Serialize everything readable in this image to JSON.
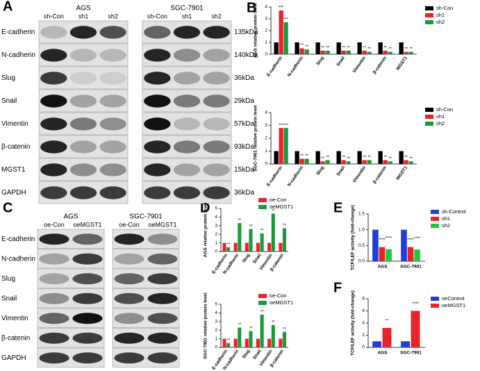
{
  "panels": [
    "A",
    "B",
    "C",
    "D",
    "E",
    "F"
  ],
  "blot_A": {
    "groups": [
      {
        "name": "AGS",
        "lanes": [
          "sh-Con",
          "sh1",
          "sh2"
        ]
      },
      {
        "name": "SGC-7901",
        "lanes": [
          "sh-Con",
          "sh1",
          "sh2"
        ]
      }
    ],
    "rows": [
      "E-cadherin",
      "N-cadherin",
      "Slug",
      "Snail",
      "Vimentin",
      "β-catenin",
      "MGST1",
      "GAPDH"
    ],
    "sizes": [
      "135kDa",
      "140kDa",
      "36kDa",
      "29kDa",
      "57kDa",
      "93kDa",
      "15kDa",
      "36kDa"
    ]
  },
  "blot_C": {
    "groups": [
      {
        "name": "AGS",
        "lanes": [
          "oe-Con",
          "oeMGST1"
        ]
      },
      {
        "name": "SGC-7901",
        "lanes": [
          "oe-Con",
          "oeMGST1"
        ]
      }
    ],
    "rows": [
      "E-cadherin",
      "N-cadherin",
      "Slug",
      "Snail",
      "Vimentin",
      "β-catenin",
      "GAPDH"
    ]
  },
  "chart_data": [
    {
      "type": "bar",
      "ylabel": "AGS relative protein level",
      "categories": [
        "E-cadherin",
        "N-cadherin",
        "Slug",
        "Snail",
        "Vimentin",
        "β-catenin",
        "MGST1"
      ],
      "series": [
        {
          "name": "sh-Con",
          "color": "#000000",
          "values": [
            1,
            1,
            1,
            1,
            1,
            1,
            1
          ]
        },
        {
          "name": "sh1",
          "color": "#e8232a",
          "values": [
            3.7,
            0.5,
            0.3,
            0.3,
            0.3,
            0.3,
            0.2
          ],
          "annotations": [
            "***",
            "**",
            "**",
            "**",
            "**",
            "**",
            "**"
          ]
        },
        {
          "name": "sh2",
          "color": "#1a9a3a",
          "values": [
            2.7,
            0.4,
            0.3,
            0.3,
            0.2,
            0.2,
            0.2
          ],
          "annotations": [
            "***",
            "**",
            "**",
            "**",
            "**",
            "**",
            "**"
          ]
        }
      ],
      "ylim": [
        0,
        4
      ],
      "yticks": [
        0,
        1,
        2,
        3,
        4
      ]
    },
    {
      "type": "bar",
      "ylabel": "SGC-7901 relative protein level",
      "categories": [
        "E-cadherin",
        "N-cadherin",
        "Slug",
        "Snail",
        "Vimentin",
        "β-catenin",
        "MGST1"
      ],
      "series": [
        {
          "name": "sh-Con",
          "color": "#000000",
          "values": [
            1,
            1,
            1,
            1,
            1,
            1,
            1
          ]
        },
        {
          "name": "sh1",
          "color": "#e8232a",
          "values": [
            2.8,
            0.4,
            0.2,
            0.3,
            0.3,
            0.3,
            0.3
          ],
          "annotations": [
            "***",
            "**",
            "**",
            "**",
            "**",
            "**",
            "**"
          ]
        },
        {
          "name": "sh2",
          "color": "#1a9a3a",
          "values": [
            2.8,
            0.4,
            0.3,
            0.2,
            0.3,
            0.2,
            0.2
          ],
          "annotations": [
            "***",
            "**",
            "**",
            "**",
            "**",
            "**",
            "**"
          ]
        }
      ],
      "ylim": [
        0,
        4
      ],
      "yticks": [
        0,
        1,
        2,
        3,
        4
      ]
    },
    {
      "type": "bar",
      "ylabel": "AGS relative protein level",
      "categories": [
        "E-cadherin",
        "N-cadherin",
        "Slug",
        "Snail",
        "Vimentin",
        "β-catenin"
      ],
      "series": [
        {
          "name": "oe-Con",
          "color": "#e8232a",
          "values": [
            1,
            1,
            1,
            1,
            1,
            1
          ]
        },
        {
          "name": "oeMGST1",
          "color": "#1a9a3a",
          "values": [
            0.5,
            3.3,
            2.6,
            2.1,
            4.4,
            2.7
          ],
          "annotations": [
            "**",
            "**",
            "**",
            "**",
            "**",
            "**"
          ]
        }
      ],
      "ylim": [
        0,
        5
      ],
      "yticks": [
        0,
        1,
        2,
        3,
        4,
        5
      ]
    },
    {
      "type": "bar",
      "ylabel": "SGC-7901 relative protein level",
      "categories": [
        "E-cadherin",
        "N-cadherin",
        "Slug",
        "Snail",
        "Vimentin",
        "β-catenin"
      ],
      "series": [
        {
          "name": "oe-Con",
          "color": "#e8232a",
          "values": [
            1,
            1,
            1,
            1,
            1,
            1
          ]
        },
        {
          "name": "oeMGST1",
          "color": "#1a9a3a",
          "values": [
            0.5,
            2.3,
            1.9,
            3.8,
            2.6,
            1.8
          ],
          "annotations": [
            "**",
            "**",
            "**",
            "**",
            "**",
            "**"
          ]
        }
      ],
      "ylim": [
        0,
        5
      ],
      "yticks": [
        0,
        1,
        2,
        3,
        4,
        5
      ]
    },
    {
      "type": "bar",
      "ylabel": "TCF/LEF activity (fold-change)",
      "categories": [
        "AGS",
        "SGC-7901"
      ],
      "series": [
        {
          "name": "sh-Control",
          "color": "#1f3fd8",
          "values": [
            1,
            1
          ]
        },
        {
          "name": "sh1",
          "color": "#e8232a",
          "values": [
            0.45,
            0.45
          ],
          "annotations": [
            "****",
            "****"
          ]
        },
        {
          "name": "sh2",
          "color": "#22c83a",
          "values": [
            0.38,
            0.37
          ],
          "annotations": [
            "****",
            "****"
          ]
        }
      ],
      "ylim": [
        0,
        1.5
      ],
      "yticks": [
        {
          "value": 0,
          "label": "0.0"
        },
        {
          "value": 0.5,
          "label": "0.5"
        },
        {
          "value": 1,
          "label": "1.0"
        },
        {
          "value": 1.5,
          "label": "1.5"
        }
      ]
    },
    {
      "type": "bar",
      "ylabel": "TCF/LEF activity (fold-change)",
      "categories": [
        "AGS",
        "SGC-7901"
      ],
      "series": [
        {
          "name": "oeControl",
          "color": "#1f3fd8",
          "values": [
            1,
            1
          ]
        },
        {
          "name": "oeMGST1",
          "color": "#e8232a",
          "values": [
            3.2,
            6.0
          ],
          "annotations": [
            "**",
            "****"
          ]
        }
      ],
      "ylim": [
        0,
        8
      ],
      "yticks": [
        0,
        2,
        4,
        6,
        8
      ]
    }
  ]
}
